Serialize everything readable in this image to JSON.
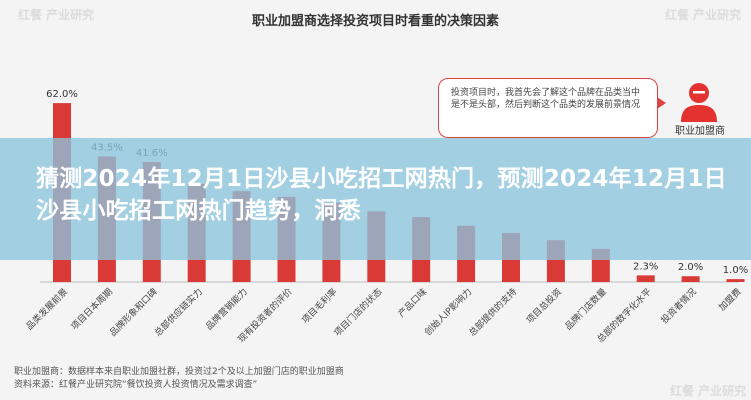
{
  "watermark": "红餐 产业研究",
  "chart_data": {
    "type": "bar",
    "title": "职业加盟商选择投资项目时看重的决策因素",
    "categories": [
      "品类发展前景",
      "项目日本周期",
      "品牌形象和口碑",
      "总部供应链实力",
      "品牌营销能力",
      "现有投资者的评价",
      "项目毛利率",
      "项目门店的状态",
      "产品口味",
      "创始人IP影响力",
      "总部提供的支持",
      "项目总投资",
      "品牌门店数量",
      "总部的数字化水平",
      "投资者情况",
      "加盟费"
    ],
    "values": [
      62.0,
      43.5,
      41.6,
      34.0,
      31.5,
      29.5,
      27.5,
      24.5,
      22.5,
      19.5,
      17.0,
      14.5,
      11.5,
      2.3,
      2.0,
      1.0
    ],
    "labels": [
      "62.0%",
      "43.5%",
      "41.6%",
      "",
      "",
      "",
      "",
      "",
      "",
      "",
      "",
      "",
      "",
      "2.3%",
      "2.0%",
      "1.0%"
    ],
    "ylim": [
      0,
      70
    ],
    "grid": false,
    "bar_color": "#d93a36"
  },
  "callout": {
    "text": "投资项目时，我首先会了解这个品牌在品类当中是不是头部，然后判断这个品类的发展前景情况",
    "speaker": "职业加盟商",
    "accent": "#d94545"
  },
  "headline": "猜测2024年12月1日沙县小吃招工网热门，预测2024年12月1日沙县小吃招工网热门趋势，洞悉",
  "footnote": {
    "line1": "职业加盟商：数据样本来自职业加盟社群，投资过2个及以上加盟门店的职业加盟商",
    "line2": "资料来源：红餐产业研究院“餐饮投资人投资情况及需求调查”"
  }
}
